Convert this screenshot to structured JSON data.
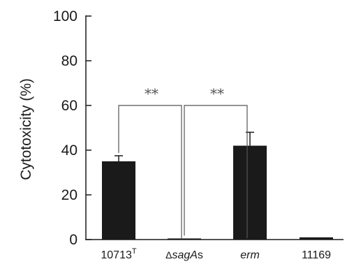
{
  "chart_data": {
    "type": "bar",
    "categories": [
      {
        "base": "10713",
        "sup": "T",
        "italic": "",
        "prefix": "",
        "suffix": ""
      },
      {
        "base": "",
        "sup": "",
        "italic": "sagA",
        "prefix": "Δ",
        "suffix": "s"
      },
      {
        "base": "",
        "sup": "",
        "italic": "erm",
        "prefix": "",
        "suffix": ""
      },
      {
        "base": "11169",
        "sup": "",
        "italic": "",
        "prefix": "",
        "suffix": ""
      }
    ],
    "values": [
      35,
      0.5,
      42,
      1
    ],
    "errors": [
      2.5,
      0,
      6,
      0
    ],
    "ylabel": "Cytotoxicity (%)",
    "xlabel": "",
    "ylim": [
      0,
      100
    ],
    "yticks": [
      0,
      20,
      40,
      60,
      80,
      100
    ],
    "grid": false,
    "bar_color": "#1a1a1a",
    "significance": [
      {
        "from": 0,
        "to": 1,
        "label": "**",
        "level": 60
      },
      {
        "from": 1,
        "to": 2,
        "label": "**",
        "level": 60
      }
    ]
  }
}
